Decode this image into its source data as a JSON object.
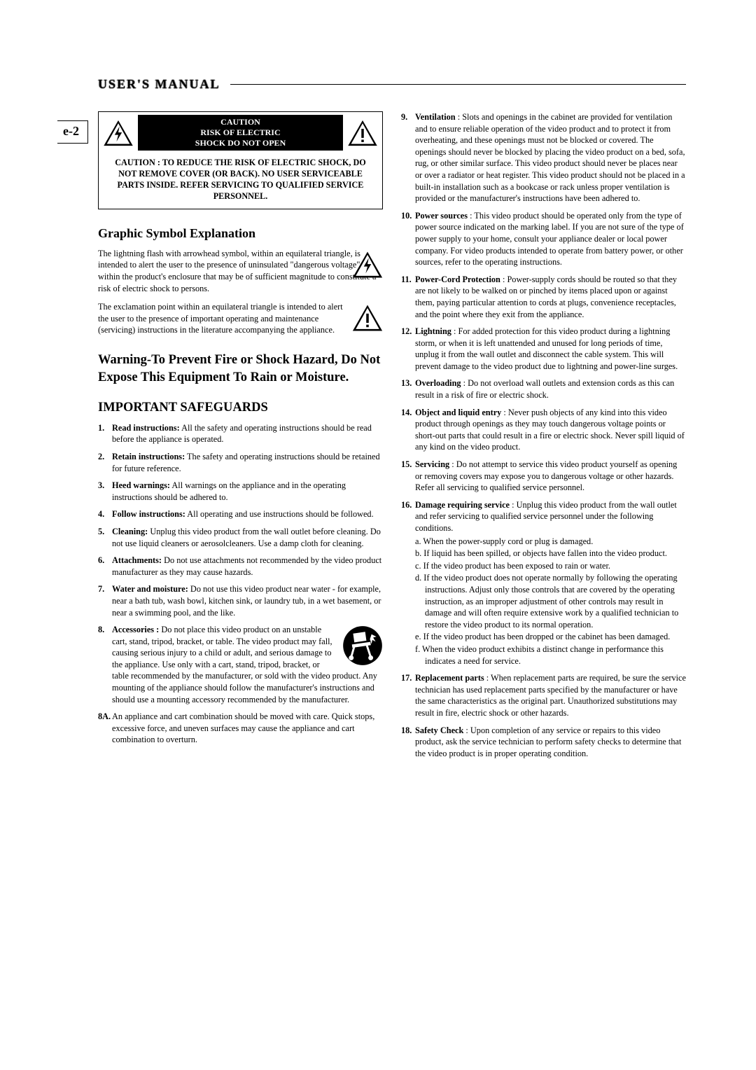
{
  "header": {
    "title": "USER'S MANUAL"
  },
  "page_tag": "e-2",
  "caution": {
    "banner_line1": "CAUTION",
    "banner_line2": "RISK OF ELECTRIC",
    "banner_line3": "SHOCK DO NOT OPEN",
    "body": "CAUTION : TO REDUCE THE RISK OF ELECTRIC SHOCK, DO NOT REMOVE COVER (OR BACK). NO USER SERVICEABLE PARTS INSIDE. REFER SERVICING TO QUALIFIED SERVICE PERSONNEL."
  },
  "gse": {
    "heading": "Graphic Symbol Explanation",
    "p1": "The lightning flash with arrowhead symbol, within an equilateral triangle, is intended to alert the user to the presence of uninsulated \"dangerous voltage\" within the product's enclosure that may be of sufficient magnitude to constitute a risk of electric shock to persons.",
    "p2": "The exclamation point within an equilateral triangle is intended to alert the user to the presence of important operating and maintenance (servicing) instructions in the literature accompanying the appliance."
  },
  "warning_heading": "Warning-To Prevent Fire or Shock Hazard, Do Not Expose This Equipment To Rain or Moisture.",
  "safeguards_heading": "IMPORTANT SAFEGUARDS",
  "items_left": [
    {
      "n": "1.",
      "lead": "Read instructions:",
      "body": " All the safety and operating instructions should be read before the appliance is operated."
    },
    {
      "n": "2.",
      "lead": "Retain instructions:",
      "body": " The safety and operating instructions should be retained for future reference."
    },
    {
      "n": "3.",
      "lead": "Heed warnings:",
      "body": " All warnings on the appliance and in the operating instructions should be adhered to."
    },
    {
      "n": "4.",
      "lead": "Follow instructions:",
      "body": " All operating and use instructions should be followed."
    },
    {
      "n": "5.",
      "lead": "Cleaning:",
      "body": " Unplug this video product from the wall outlet before cleaning. Do not use liquid cleaners or aerosolcleaners. Use a damp cloth for cleaning."
    },
    {
      "n": "6.",
      "lead": "Attachments:",
      "body": " Do not use attachments not recommended by the video product manufacturer as they may cause hazards."
    },
    {
      "n": "7.",
      "lead": "Water and moisture:",
      "body": " Do not use this video product near  water - for example, near a bath tub, wash bowl, kitchen sink, or laundry tub, in a wet basement, or near a swimming pool, and the like."
    },
    {
      "n": "8.",
      "lead": "Accessories :",
      "body": " Do not place this video product on an unstable cart, stand, tripod, bracket, or table. The video product may fall, causing serious injury to a child or adult, and serious damage to the appliance. Use only with a cart, stand, tripod, bracket, or table recommended by the manufacturer, or sold with the video product. Any mounting of the appliance should follow the manufacturer's instructions and should use a mounting accessory recommended by the manufacturer.",
      "cart": true
    },
    {
      "n": "8A.",
      "lead": "",
      "body": "An appliance and cart combination should be moved with care. Quick stops, excessive force, and uneven surfaces may cause the appliance and cart combination to overturn."
    }
  ],
  "items_right": [
    {
      "n": "9.",
      "lead": "Ventilation",
      "body": " : Slots and openings in the cabinet are provided for ventilation and to ensure reliable operation of the video product and to protect it from overheating, and these openings must not be blocked or covered. The openings should never be blocked by placing the video product on a bed, sofa, rug, or other similar surface. This video product should never be places near or over a radiator or heat register. This video product should not be placed in a built-in installation such as a bookcase or rack unless proper ventilation is provided or the manufacturer's instructions have been adhered to."
    },
    {
      "n": "10.",
      "lead": "Power sources",
      "body": " : This video product should be operated only from the type of power source indicated on the marking label. If you are not sure of the type of power supply to your home, consult your appliance dealer or local power company. For video products intended to operate from battery power, or other sources, refer to the operating instructions."
    },
    {
      "n": "11.",
      "lead": "Power-Cord Protection",
      "body": " : Power-supply cords should be routed so that they are not likely to be walked on or pinched by items placed upon or against them, paying particular attention to cords at plugs, convenience receptacles, and the point where they exit from the appliance."
    },
    {
      "n": "12.",
      "lead": "Lightning",
      "body": " : For added protection for this video product during a lightning storm, or when it is left unattended and unused for long periods of time, unplug it from the wall outlet and disconnect the cable system. This will prevent damage to the video product due to lightning and power-line surges."
    },
    {
      "n": "13.",
      "lead": "Overloading",
      "body": " : Do not overload wall outlets and extension cords as this can result in a risk of fire or electric shock."
    },
    {
      "n": "14.",
      "lead": "Object and liquid entry",
      "body": " : Never push objects of any kind into this video product through openings as they may touch dangerous voltage points or short-out parts that could result in a fire or electric shock. Never spill liquid of any kind on the video product."
    },
    {
      "n": "15.",
      "lead": "Servicing",
      "body": " : Do not attempt to service this video product yourself as opening or removing covers may expose you to dangerous voltage or other hazards. Refer all servicing to qualified service personnel."
    },
    {
      "n": "16.",
      "lead": "Damage requiring service",
      "body": " : Unplug this video product from the wall outlet and refer servicing to qualified service personnel under the following conditions.",
      "subs": [
        "a. When the power-supply cord or plug is damaged.",
        "b. If liquid has been spilled, or objects have fallen into the video product.",
        "c. If the video product has been exposed to rain or water.",
        "d. If the video product does not operate normally by following the operating instructions. Adjust only those controls that are covered by the operating instruction, as an improper adjustment of other controls may result in damage and will often require extensive work by a qualified technician to restore the video product to its normal operation.",
        "e. If the video product has been dropped or the cabinet has been damaged.",
        "f. When the video product exhibits a distinct change in performance this indicates a need for service."
      ]
    },
    {
      "n": "17.",
      "lead": "Replacement parts",
      "body": " : When replacement parts are required, be sure the service technician has used replacement parts specified by the manufacturer or have the same characteristics as the original part. Unauthorized substitutions may result in fire, electric shock or other hazards."
    },
    {
      "n": "18.",
      "lead": "Safety Check",
      "body": " : Upon completion of any service or repairs to this video product, ask the service technician to perform safety checks to determine that the video product is in proper operating condition."
    }
  ]
}
